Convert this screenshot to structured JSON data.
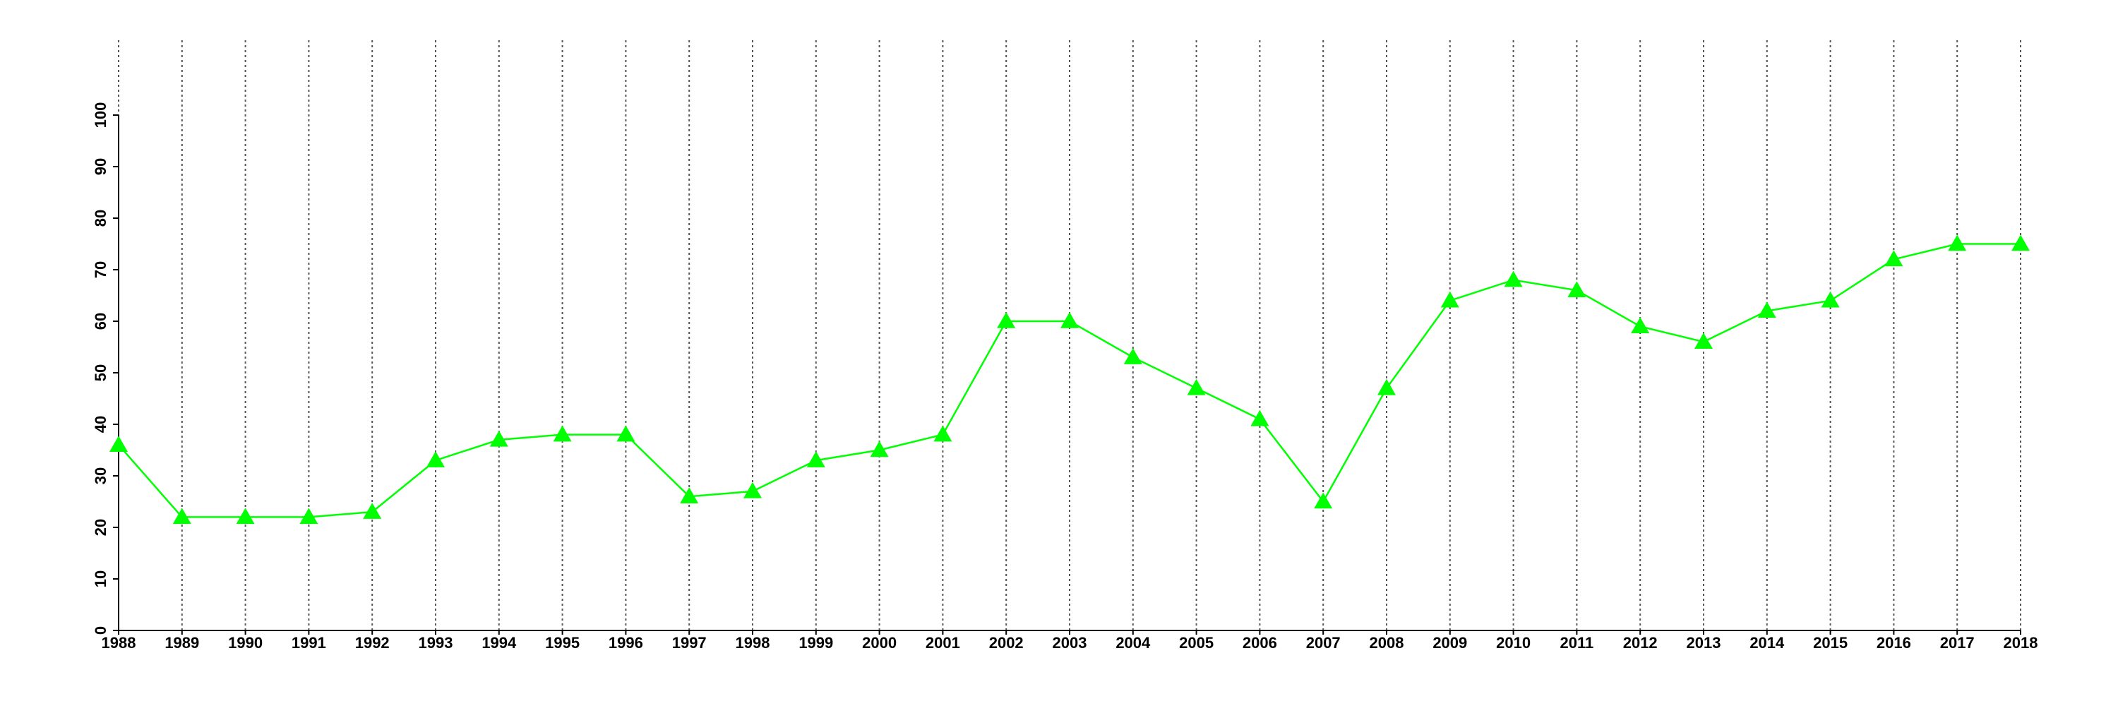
{
  "chart_data": {
    "type": "line",
    "x": [
      1988,
      1989,
      1990,
      1991,
      1992,
      1993,
      1994,
      1995,
      1996,
      1997,
      1998,
      1999,
      2000,
      2001,
      2002,
      2003,
      2004,
      2005,
      2006,
      2007,
      2008,
      2009,
      2010,
      2011,
      2012,
      2013,
      2014,
      2015,
      2016,
      2017,
      2018
    ],
    "values": [
      36,
      22,
      22,
      22,
      23,
      33,
      37,
      38,
      38,
      26,
      27,
      33,
      35,
      38,
      60,
      60,
      53,
      47,
      41,
      25,
      47,
      64,
      68,
      66,
      59,
      56,
      62,
      64,
      72,
      75,
      75
    ],
    "color": "#00ff00",
    "xlim": [
      1988,
      2018
    ],
    "xticks": [
      1988,
      1989,
      1990,
      1991,
      1992,
      1993,
      1994,
      1995,
      1996,
      1997,
      1998,
      1999,
      2000,
      2001,
      2002,
      2003,
      2004,
      2005,
      2006,
      2007,
      2008,
      2009,
      2010,
      2011,
      2012,
      2013,
      2014,
      2015,
      2016,
      2017,
      2018
    ],
    "ylim": [
      0,
      100
    ],
    "yticks": [
      0,
      10,
      20,
      30,
      40,
      50,
      60,
      70,
      80,
      90,
      100
    ],
    "grid": "x",
    "marker": "triangle"
  }
}
